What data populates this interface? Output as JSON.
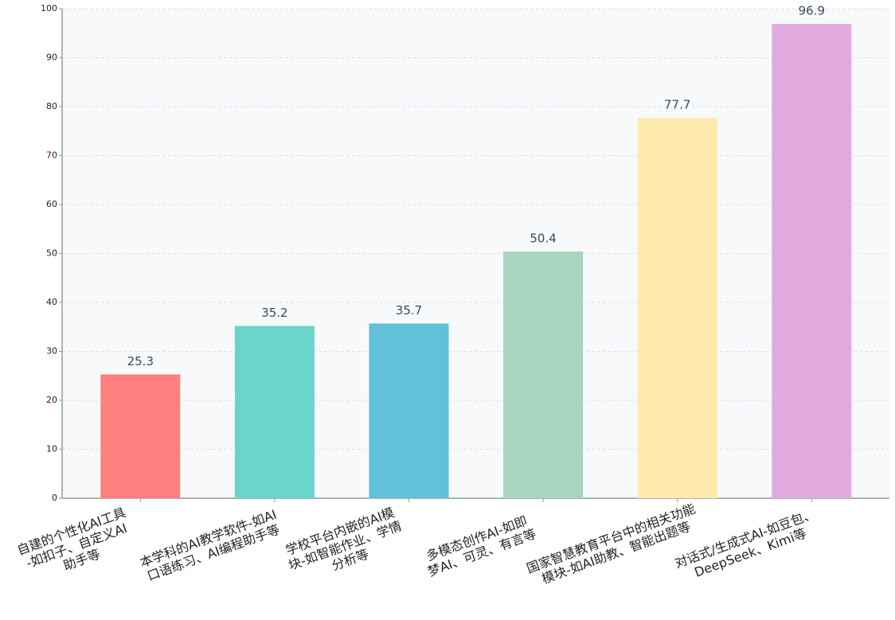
{
  "chart_data": {
    "type": "bar",
    "categories": [
      "自建的个性化AI工具\n-如扣子、自定义AI\n助手等",
      "本学科的AI教学软件-如AI\n口语练习、AI编程助手等",
      "学校平台内嵌的AI模\n块-如智能作业、学情\n分析等",
      "多模态创作AI-如即\n梦AI、可灵、有言等",
      "国家智慧教育平台中的相关功能\n模块-如AI助教、智能出题等",
      "对话式/生成式AI-如豆包、\nDeepSeek、Kimi等"
    ],
    "values": [
      25.3,
      35.2,
      35.7,
      50.4,
      77.7,
      96.9
    ],
    "colors": [
      "#ff7f7f",
      "#6bd5cc",
      "#62c1d8",
      "#a8d5bf",
      "#ffeaad",
      "#e0aadf"
    ],
    "ylim": [
      0,
      100
    ],
    "yticks": [
      0,
      10,
      20,
      30,
      40,
      50,
      60,
      70,
      80,
      90,
      100
    ],
    "grid": true
  }
}
